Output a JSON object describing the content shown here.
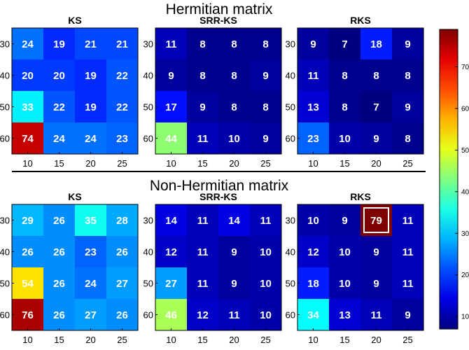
{
  "chart_data": {
    "type": "heatmap",
    "x_ticks": [
      "10",
      "15",
      "20",
      "25"
    ],
    "y_ticks": [
      "30",
      "40",
      "50",
      "60"
    ],
    "colorbar": {
      "min": 7,
      "max": 79,
      "ticks": [
        "10",
        "20",
        "30",
        "40",
        "50",
        "60",
        "70"
      ],
      "tick_values": [
        10,
        20,
        30,
        40,
        50,
        60,
        70
      ],
      "colormap": "jet"
    },
    "sections": [
      {
        "title": "Hermitian matrix",
        "panels": [
          {
            "title": "KS",
            "values": [
              [
                24,
                19,
                21,
                21
              ],
              [
                20,
                20,
                19,
                22
              ],
              [
                33,
                22,
                19,
                22
              ],
              [
                74,
                24,
                24,
                23
              ]
            ]
          },
          {
            "title": "SRR-KS",
            "values": [
              [
                11,
                8,
                8,
                8
              ],
              [
                9,
                8,
                8,
                9
              ],
              [
                17,
                9,
                8,
                8
              ],
              [
                44,
                11,
                10,
                9
              ]
            ]
          },
          {
            "title": "RKS",
            "values": [
              [
                9,
                7,
                18,
                9
              ],
              [
                11,
                8,
                8,
                8
              ],
              [
                13,
                8,
                7,
                9
              ],
              [
                23,
                10,
                9,
                8
              ]
            ]
          }
        ]
      },
      {
        "title": "Non-Hermitian matrix",
        "panels": [
          {
            "title": "KS",
            "values": [
              [
                29,
                26,
                35,
                28
              ],
              [
                26,
                26,
                23,
                26
              ],
              [
                54,
                26,
                24,
                27
              ],
              [
                76,
                26,
                27,
                26
              ]
            ]
          },
          {
            "title": "SRR-KS",
            "values": [
              [
                14,
                11,
                14,
                11
              ],
              [
                12,
                11,
                9,
                10
              ],
              [
                27,
                11,
                9,
                10
              ],
              [
                46,
                12,
                11,
                10
              ]
            ]
          },
          {
            "title": "RKS",
            "values": [
              [
                10,
                9,
                79,
                11
              ],
              [
                12,
                10,
                9,
                11
              ],
              [
                18,
                10,
                9,
                11
              ],
              [
                34,
                13,
                11,
                9
              ]
            ],
            "highlight": {
              "row": 0,
              "col": 2
            }
          }
        ]
      }
    ]
  }
}
